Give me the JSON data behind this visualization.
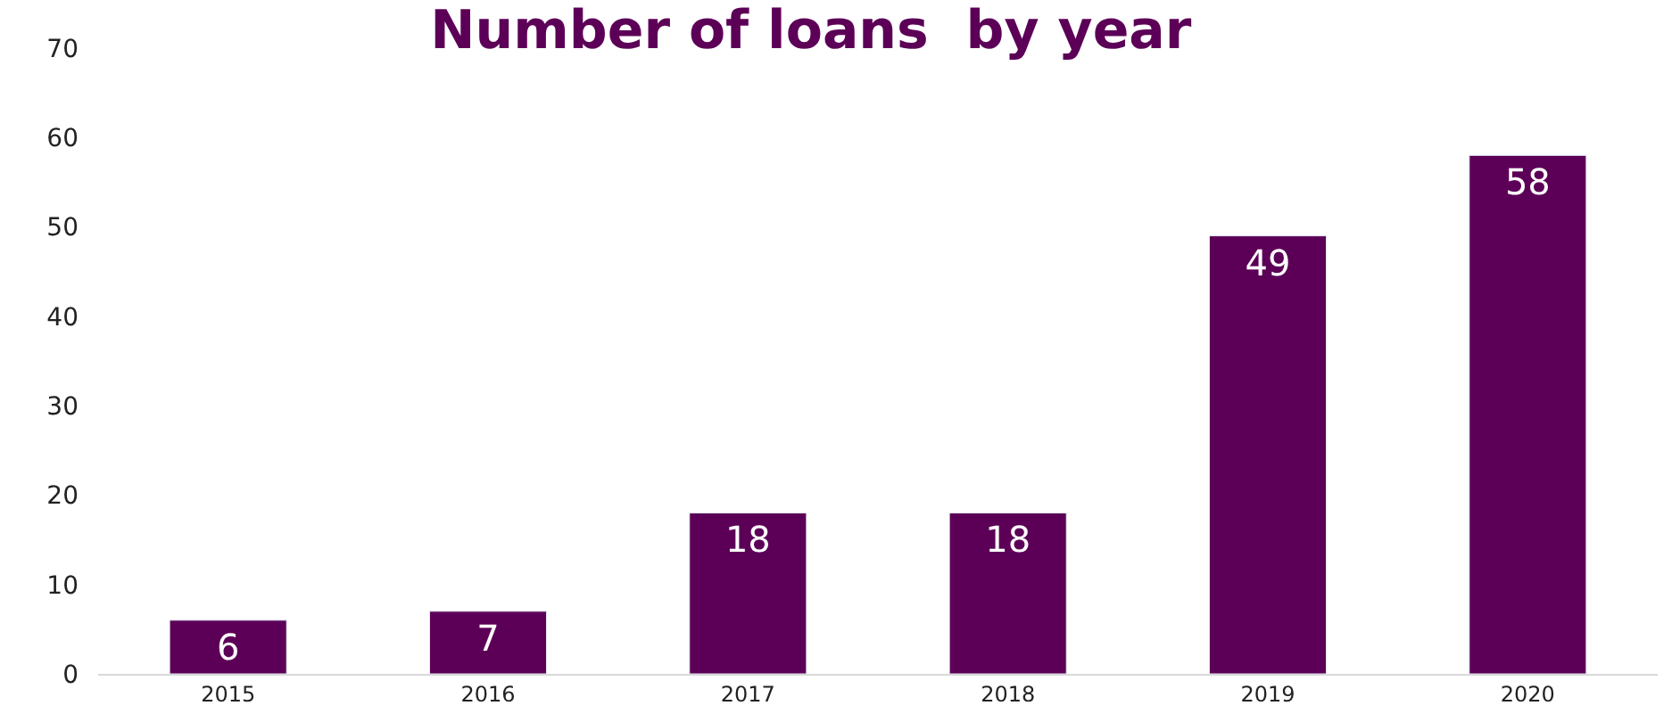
{
  "chart_data": {
    "type": "bar",
    "title": "Number of loans  by year",
    "categories": [
      "2015",
      "2016",
      "2017",
      "2018",
      "2019",
      "2020"
    ],
    "values": [
      6,
      7,
      18,
      18,
      49,
      58
    ],
    "color": "#5c0057",
    "ylim": [
      0,
      70
    ],
    "yticks": [
      0,
      10,
      20,
      30,
      40,
      50,
      60,
      70
    ],
    "grid": false,
    "data_labels": true
  }
}
